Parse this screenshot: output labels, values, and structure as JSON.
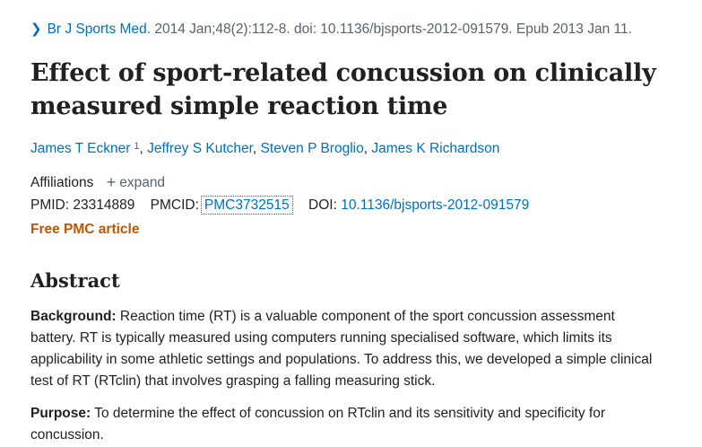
{
  "citation": {
    "chevron_icon": "chevron-right-icon",
    "journal": "Br J Sports Med.",
    "details": "2014 Jan;48(2):112-8. doi: 10.1136/bjsports-2012-091579. Epub 2013 Jan 11."
  },
  "title": "Effect of sport-related concussion on clinically measured simple reaction time",
  "authors": [
    {
      "name": "James T Eckner",
      "sup": "1"
    },
    {
      "name": "Jeffrey S Kutcher"
    },
    {
      "name": "Steven P Broglio"
    },
    {
      "name": "James K Richardson"
    }
  ],
  "affiliations": {
    "label": "Affiliations",
    "expand_label": "expand"
  },
  "ids": {
    "pmid_label": "PMID:",
    "pmid": "23314889",
    "pmcid_label": "PMCID:",
    "pmcid": "PMC3732515",
    "doi_label": "DOI:",
    "doi": "10.1136/bjsports-2012-091579"
  },
  "free_pmc": "Free PMC article",
  "abstract": {
    "heading": "Abstract",
    "sections": [
      {
        "label": "Background:",
        "text": "Reaction time (RT) is a valuable component of the sport concussion assessment battery. RT is typically measured using computers running specialised software, which limits its applicability in some athletic settings and populations. To address this, we developed a simple clinical test of RT (RTclin) that involves grasping a falling measuring stick."
      },
      {
        "label": "Purpose:",
        "text": "To determine the effect of concussion on RTclin and its sensitivity and specificity for concussion."
      }
    ]
  },
  "colors": {
    "link": "#0071bc",
    "accent": "#c05600",
    "text": "#212121",
    "muted": "#5b616b"
  }
}
